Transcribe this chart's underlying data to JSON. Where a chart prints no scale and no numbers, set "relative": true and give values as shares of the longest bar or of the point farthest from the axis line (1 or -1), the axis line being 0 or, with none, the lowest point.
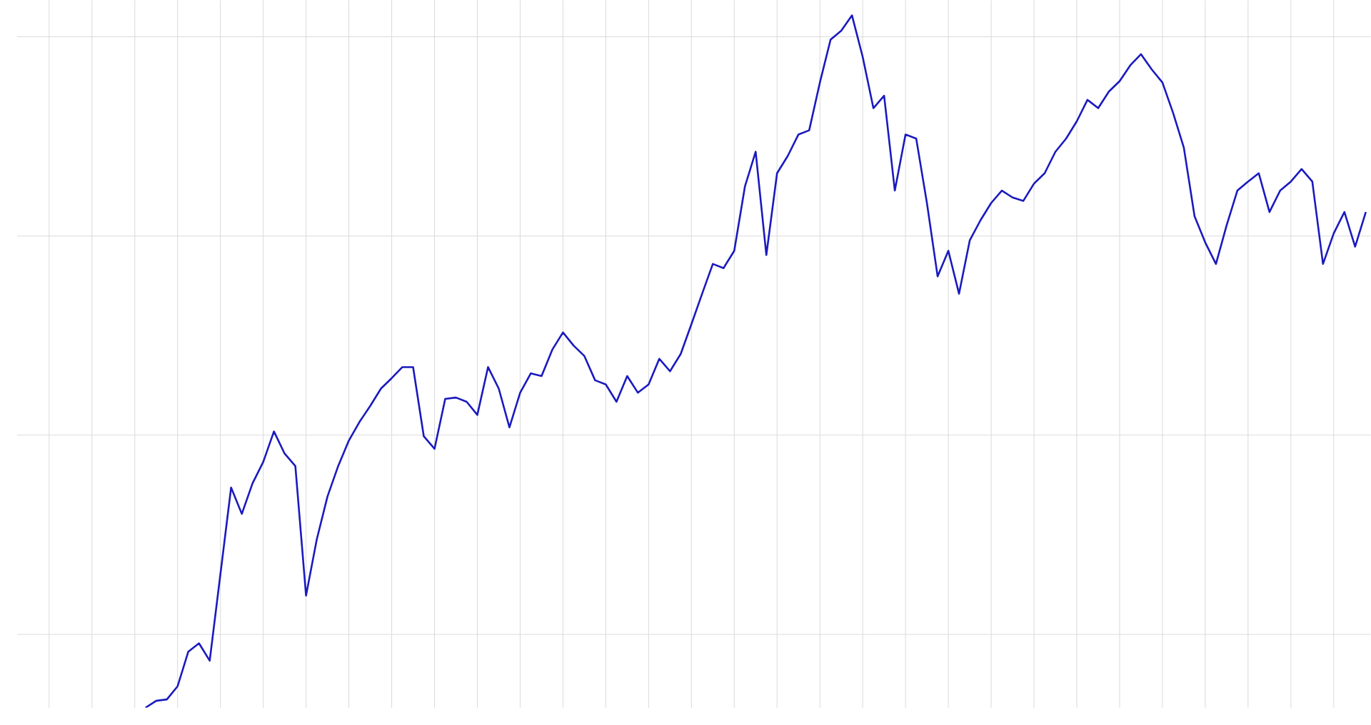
{
  "chart_data": {
    "type": "line",
    "relative": true,
    "grid": true,
    "color": "#1a1abf",
    "categories": [
      null,
      null,
      null,
      null,
      null,
      null,
      null,
      null,
      null,
      null,
      null,
      null,
      null,
      null,
      null,
      null,
      null,
      null,
      null,
      null,
      null,
      null,
      null,
      null,
      null,
      null,
      null,
      null,
      null,
      null,
      null,
      null,
      null,
      null,
      null,
      null,
      null,
      null,
      null,
      null,
      null,
      null,
      null,
      null,
      null,
      null,
      null,
      null,
      null,
      null,
      null,
      null,
      null,
      null,
      null,
      null,
      null,
      null,
      null,
      null,
      null,
      null,
      null,
      null,
      null,
      null,
      null,
      null,
      null,
      null,
      null,
      null,
      null,
      null,
      null,
      null,
      null,
      null,
      null,
      null,
      null,
      null,
      null,
      null,
      null,
      null,
      null,
      null,
      null,
      null,
      null,
      null,
      null,
      null,
      null,
      null,
      null,
      null,
      null,
      null,
      null,
      null,
      null,
      null,
      null,
      null,
      null,
      null,
      null,
      null,
      null,
      null,
      null,
      null,
      null,
      null,
      null,
      null,
      null,
      null,
      null,
      null,
      null,
      null,
      null,
      null,
      null
    ],
    "values": [
      null,
      null,
      null,
      null,
      null,
      null,
      null,
      null,
      null,
      null,
      null,
      null,
      0,
      0.01,
      0.012,
      0.031,
      0.081,
      0.093,
      0.068,
      0.193,
      0.318,
      0.28,
      0.324,
      0.355,
      0.399,
      0.367,
      0.349,
      0.162,
      0.243,
      0.305,
      0.349,
      0.386,
      0.413,
      0.436,
      0.461,
      0.476,
      0.492,
      0.492,
      0.392,
      0.374,
      0.446,
      0.448,
      0.442,
      0.423,
      0.492,
      0.461,
      0.405,
      0.455,
      0.483,
      0.479,
      0.517,
      0.542,
      0.523,
      0.508,
      0.473,
      0.467,
      0.442,
      0.479,
      0.455,
      0.467,
      0.504,
      0.486,
      0.511,
      0.554,
      0.598,
      0.641,
      0.635,
      0.66,
      0.753,
      0.803,
      0.654,
      0.772,
      0.797,
      0.828,
      0.834,
      0.903,
      0.965,
      0.978,
      1.0,
      0.94,
      0.866,
      0.884,
      0.747,
      0.828,
      0.822,
      0.729,
      0.623,
      0.66,
      0.598,
      0.675,
      0.704,
      0.729,
      0.747,
      0.737,
      0.732,
      0.757,
      0.772,
      0.803,
      0.822,
      0.847,
      0.878,
      0.866,
      0.89,
      0.905,
      0.928,
      0.944,
      0.922,
      0.903,
      0.859,
      0.809,
      0.71,
      0.672,
      0.641,
      0.697,
      0.747,
      0.76,
      0.772,
      0.716,
      0.747,
      0.76,
      0.778,
      0.76,
      0.641,
      0.685,
      0.716,
      0.666,
      0.716
    ]
  }
}
